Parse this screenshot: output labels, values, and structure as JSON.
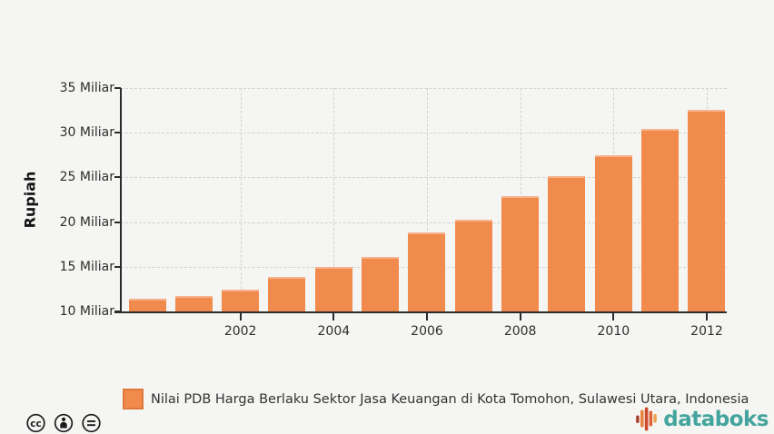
{
  "chart_data": {
    "type": "bar",
    "title": "",
    "ylabel": "Rupiah",
    "xlabel": "",
    "categories": [
      "2000",
      "2001",
      "2002",
      "2003",
      "2004",
      "2005",
      "2006",
      "2007",
      "2008",
      "2009",
      "2010",
      "2011",
      "2012"
    ],
    "values": [
      11.4,
      11.7,
      12.4,
      13.9,
      15.0,
      16.1,
      18.8,
      20.3,
      22.9,
      25.1,
      27.5,
      30.4,
      32.6
    ],
    "series_name": "Nilai PDB Harga Berlaku Sektor Jasa Keuangan di Kota Tomohon, Sulawesi Utara, Indonesia",
    "unit": "Miliar Rupiah",
    "ylim": [
      10,
      35
    ],
    "y_ticks": [
      10,
      15,
      20,
      25,
      30,
      35
    ],
    "y_tick_labels": [
      "10 Miliar",
      "15 Miliar",
      "20 Miliar",
      "25 Miliar",
      "30 Miliar",
      "35 Miliar"
    ],
    "x_tick_labels": [
      "2002",
      "2004",
      "2006",
      "2008",
      "2010",
      "2012"
    ],
    "grid": true,
    "legend_position": "bottom",
    "bar_color": "#F18A4D",
    "bar_border_color": "#DF7838"
  },
  "legend": {
    "label": "Nilai PDB Harga Berlaku Sektor Jasa Keuangan di Kota Tomohon, Sulawesi Utara, Indonesia",
    "swatch_color": "#F18A4D"
  },
  "footer": {
    "license_icons": [
      "cc-icon",
      "attribution-icon",
      "no-derivatives-icon"
    ],
    "brand": {
      "name": "databoks",
      "color": "#43A59D"
    }
  }
}
